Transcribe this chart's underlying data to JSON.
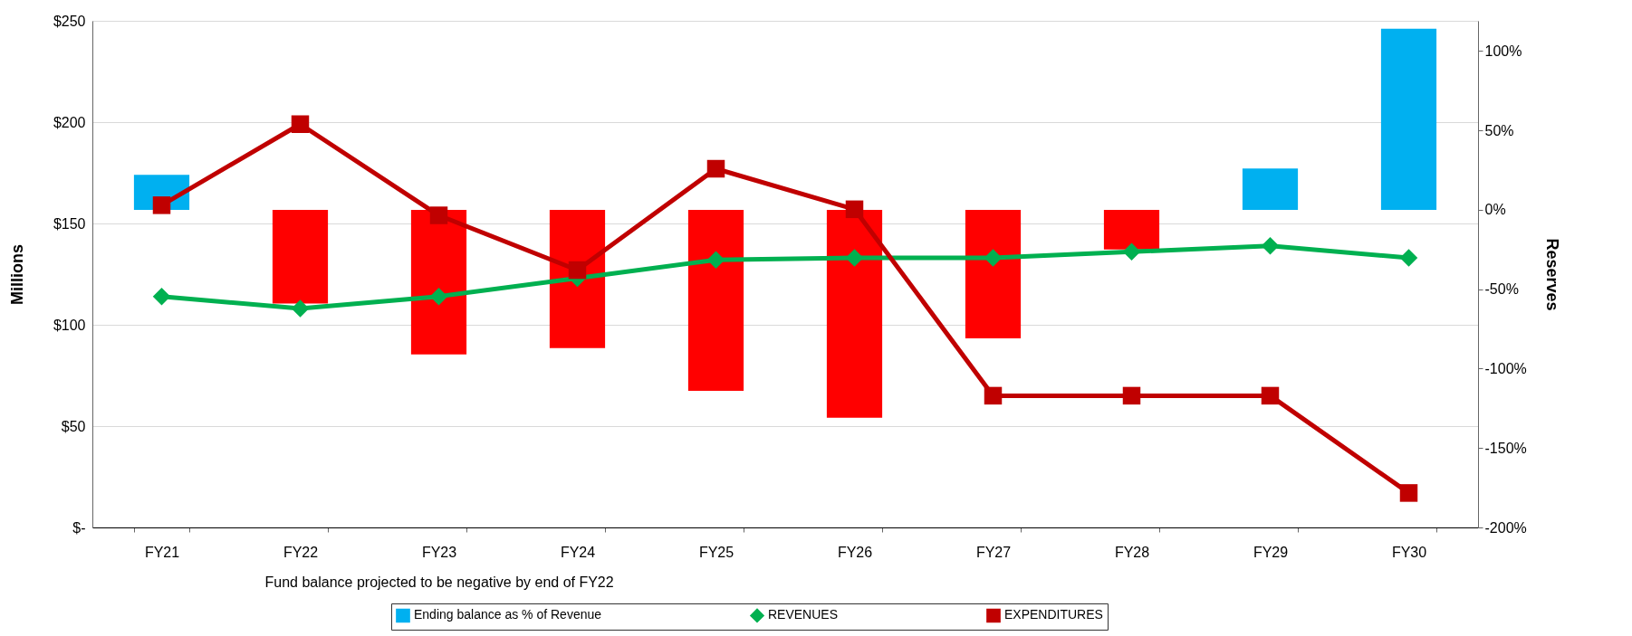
{
  "chart_data": {
    "type": "bar",
    "ylabel": "Millions",
    "y2label": "Reserves",
    "categories": [
      "FY21",
      "FY22",
      "FY23",
      "FY24",
      "FY25",
      "FY26",
      "FY27",
      "FY28",
      "FY29",
      "FY30"
    ],
    "series": [
      {
        "name": "Ending balance as % of Revenue",
        "axis": "y2",
        "color": "#00b0f0",
        "values": [
          22,
          -59,
          -91,
          -87,
          -114,
          -131,
          -81,
          -25,
          26,
          114
        ],
        "colors": [
          "#00b0f0",
          "#ff0000",
          "#ff0000",
          "#ff0000",
          "#ff0000",
          "#ff0000",
          "#ff0000",
          "#ff0000",
          "#00b0f0",
          "#00b0f0"
        ]
      },
      {
        "name": "REVENUES",
        "type": "line",
        "color": "#00b050",
        "marker": "diamond",
        "values": [
          114,
          108,
          114,
          123,
          132,
          133,
          133,
          136,
          139,
          133
        ]
      },
      {
        "name": "EXPENDITURES",
        "type": "line",
        "color": "#c00000",
        "marker": "square",
        "values": [
          159,
          199,
          154,
          127,
          177,
          157,
          65,
          65,
          65,
          17
        ]
      }
    ],
    "ylim": [
      0,
      250
    ],
    "yticks": [
      {
        "value": 0,
        "label": "$-"
      },
      {
        "value": 50,
        "label": "$50"
      },
      {
        "value": 100,
        "label": "$100"
      },
      {
        "value": 150,
        "label": "$150"
      },
      {
        "value": 200,
        "label": "$200"
      },
      {
        "value": 250,
        "label": "$250"
      }
    ],
    "y2lim": [
      -200,
      119
    ],
    "y2ticks": [
      {
        "value": -200,
        "label": "-200%"
      },
      {
        "value": -150,
        "label": "-150%"
      },
      {
        "value": -100,
        "label": "-100%"
      },
      {
        "value": -50,
        "label": "-50%"
      },
      {
        "value": 0,
        "label": "0%"
      },
      {
        "value": 50,
        "label": "50%"
      },
      {
        "value": 100,
        "label": "100%"
      }
    ],
    "grid": "y",
    "legend": "bottom",
    "annotations": [
      "Fund balance projected to be negative by end of FY22"
    ]
  }
}
